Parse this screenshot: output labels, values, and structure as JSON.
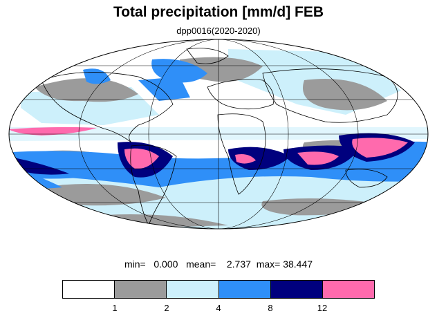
{
  "title": "Total precipitation [mm/d] FEB",
  "subtitle": "dpp0016(2020-2020)",
  "stats": {
    "min_label": "min=",
    "min_value": "0.000",
    "mean_label": "mean=",
    "mean_value": "2.737",
    "max_label": "max=",
    "max_value": "38.447"
  },
  "legend": {
    "levels": [
      "1",
      "2",
      "4",
      "8",
      "12"
    ],
    "colors": [
      "#ffffff",
      "#9b9b9b",
      "#cdf0fb",
      "#2f8ff8",
      "#00007e",
      "#ff6aad"
    ]
  },
  "colors": {
    "land_outline": "#000000",
    "graticule": "#000000"
  }
}
